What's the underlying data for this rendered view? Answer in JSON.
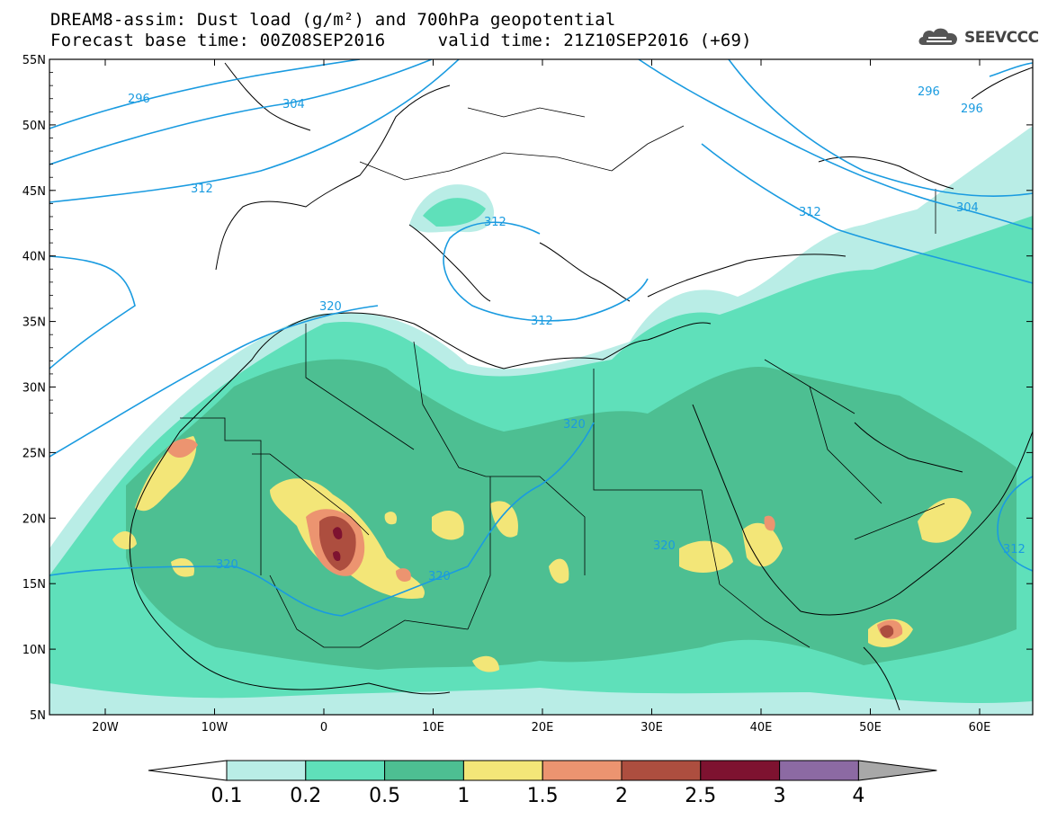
{
  "title": {
    "line1": "DREAM8-assim: Dust load (g/m²) and 700hPa geopotential",
    "line2": "Forecast base time: 00Z08SEP2016     valid time: 21Z10SEP2016 (+69)"
  },
  "logo": {
    "text": "SEEVCCC",
    "icon": "cloud-logo-icon"
  },
  "axes": {
    "lat_labels": [
      "55N",
      "50N",
      "45N",
      "40N",
      "35N",
      "30N",
      "25N",
      "20N",
      "15N",
      "10N",
      "5N"
    ],
    "lon_labels": [
      "20W",
      "10W",
      "0",
      "10E",
      "20E",
      "30E",
      "40E",
      "50E",
      "60E"
    ]
  },
  "contour_labels": [
    "296",
    "304",
    "312",
    "320",
    "312",
    "312",
    "320",
    "320",
    "320",
    "320",
    "296",
    "296",
    "304",
    "312",
    "312"
  ],
  "colorbar": {
    "ticks": [
      "0.1",
      "0.2",
      "0.5",
      "1",
      "1.5",
      "2",
      "2.5",
      "3",
      "4"
    ],
    "colors": [
      "#b9ede6",
      "#5fe0ba",
      "#4dbf92",
      "#f3e678",
      "#ec9470",
      "#ad4e3f",
      "#7e1230",
      "#8c6aa3",
      "#a8a8a8"
    ],
    "below_color": "#ffffff"
  },
  "colors": {
    "contour": "#1a9be0",
    "border": "#000000"
  }
}
